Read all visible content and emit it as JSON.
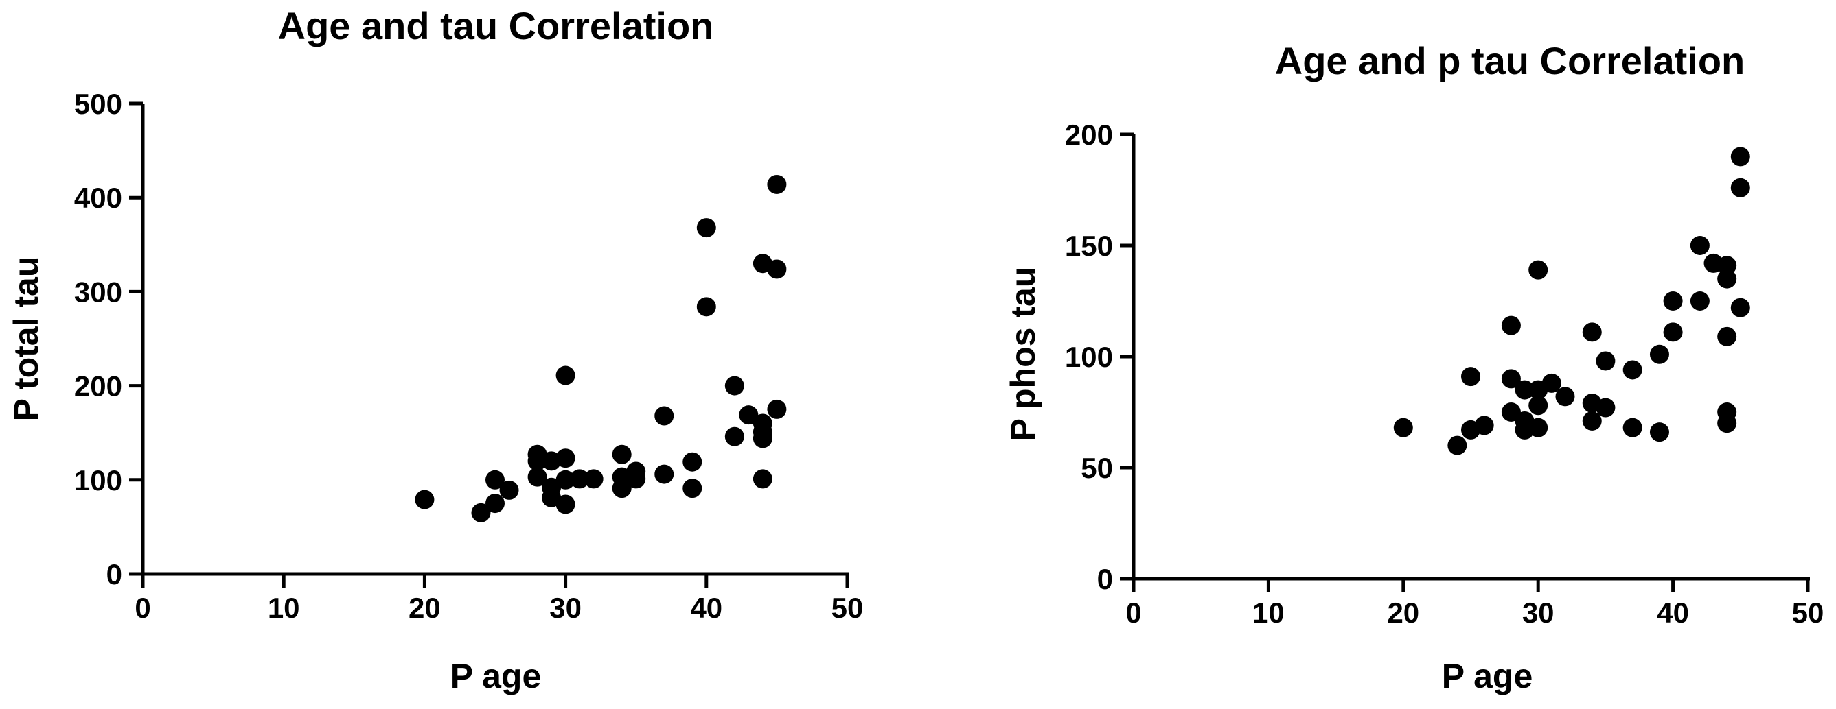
{
  "chart_data": [
    {
      "type": "scatter",
      "title": "Age and tau Correlation",
      "xlabel": "P  age",
      "ylabel": "P total tau",
      "xlim": [
        0,
        50
      ],
      "ylim": [
        0,
        500
      ],
      "xticks": [
        0,
        10,
        20,
        30,
        40,
        50
      ],
      "yticks": [
        0,
        100,
        200,
        300,
        400,
        500
      ],
      "xtick_labels": [
        "0",
        "10",
        "20",
        "30",
        "40",
        "50"
      ],
      "ytick_labels": [
        "0",
        "100",
        "200",
        "300",
        "400",
        "500"
      ],
      "grid": false,
      "points": [
        {
          "x": 20,
          "y": 79
        },
        {
          "x": 24,
          "y": 65
        },
        {
          "x": 25,
          "y": 75
        },
        {
          "x": 25,
          "y": 100
        },
        {
          "x": 26,
          "y": 89
        },
        {
          "x": 28,
          "y": 127
        },
        {
          "x": 28,
          "y": 120
        },
        {
          "x": 28,
          "y": 103
        },
        {
          "x": 29,
          "y": 120
        },
        {
          "x": 29,
          "y": 92
        },
        {
          "x": 29,
          "y": 81
        },
        {
          "x": 30,
          "y": 211
        },
        {
          "x": 30,
          "y": 123
        },
        {
          "x": 30,
          "y": 100
        },
        {
          "x": 30,
          "y": 74
        },
        {
          "x": 31,
          "y": 101
        },
        {
          "x": 32,
          "y": 101
        },
        {
          "x": 34,
          "y": 127
        },
        {
          "x": 34,
          "y": 103
        },
        {
          "x": 34,
          "y": 91
        },
        {
          "x": 35,
          "y": 109
        },
        {
          "x": 35,
          "y": 101
        },
        {
          "x": 37,
          "y": 168
        },
        {
          "x": 37,
          "y": 106
        },
        {
          "x": 39,
          "y": 119
        },
        {
          "x": 39,
          "y": 91
        },
        {
          "x": 40,
          "y": 368
        },
        {
          "x": 40,
          "y": 284
        },
        {
          "x": 42,
          "y": 200
        },
        {
          "x": 42,
          "y": 146
        },
        {
          "x": 43,
          "y": 169
        },
        {
          "x": 44,
          "y": 330
        },
        {
          "x": 44,
          "y": 160
        },
        {
          "x": 44,
          "y": 151
        },
        {
          "x": 44,
          "y": 144
        },
        {
          "x": 44,
          "y": 101
        },
        {
          "x": 45,
          "y": 414
        },
        {
          "x": 45,
          "y": 324
        },
        {
          "x": 45,
          "y": 175
        }
      ]
    },
    {
      "type": "scatter",
      "title": "Age and p tau Correlation",
      "xlabel": "P  age",
      "ylabel": "P phos tau",
      "xlim": [
        0,
        50
      ],
      "ylim": [
        0,
        200
      ],
      "xticks": [
        0,
        10,
        20,
        30,
        40,
        50
      ],
      "yticks": [
        0,
        50,
        100,
        150,
        200
      ],
      "xtick_labels": [
        "0",
        "10",
        "20",
        "30",
        "40",
        "50"
      ],
      "ytick_labels": [
        "0",
        "50",
        "100",
        "150",
        "200"
      ],
      "grid": false,
      "points": [
        {
          "x": 20,
          "y": 68
        },
        {
          "x": 24,
          "y": 60
        },
        {
          "x": 25,
          "y": 67
        },
        {
          "x": 25,
          "y": 91
        },
        {
          "x": 26,
          "y": 69
        },
        {
          "x": 28,
          "y": 114
        },
        {
          "x": 28,
          "y": 90
        },
        {
          "x": 28,
          "y": 75
        },
        {
          "x": 29,
          "y": 85
        },
        {
          "x": 29,
          "y": 71
        },
        {
          "x": 29,
          "y": 67
        },
        {
          "x": 30,
          "y": 139
        },
        {
          "x": 30,
          "y": 85
        },
        {
          "x": 30,
          "y": 78
        },
        {
          "x": 30,
          "y": 68
        },
        {
          "x": 31,
          "y": 88
        },
        {
          "x": 32,
          "y": 82
        },
        {
          "x": 34,
          "y": 111
        },
        {
          "x": 34,
          "y": 79
        },
        {
          "x": 34,
          "y": 71
        },
        {
          "x": 35,
          "y": 98
        },
        {
          "x": 35,
          "y": 77
        },
        {
          "x": 37,
          "y": 94
        },
        {
          "x": 37,
          "y": 68
        },
        {
          "x": 39,
          "y": 101
        },
        {
          "x": 39,
          "y": 66
        },
        {
          "x": 40,
          "y": 125
        },
        {
          "x": 40,
          "y": 111
        },
        {
          "x": 42,
          "y": 150
        },
        {
          "x": 42,
          "y": 125
        },
        {
          "x": 43,
          "y": 142
        },
        {
          "x": 44,
          "y": 141
        },
        {
          "x": 44,
          "y": 135
        },
        {
          "x": 44,
          "y": 109
        },
        {
          "x": 44,
          "y": 75
        },
        {
          "x": 44,
          "y": 70
        },
        {
          "x": 45,
          "y": 190
        },
        {
          "x": 45,
          "y": 176
        },
        {
          "x": 45,
          "y": 122
        }
      ]
    }
  ]
}
